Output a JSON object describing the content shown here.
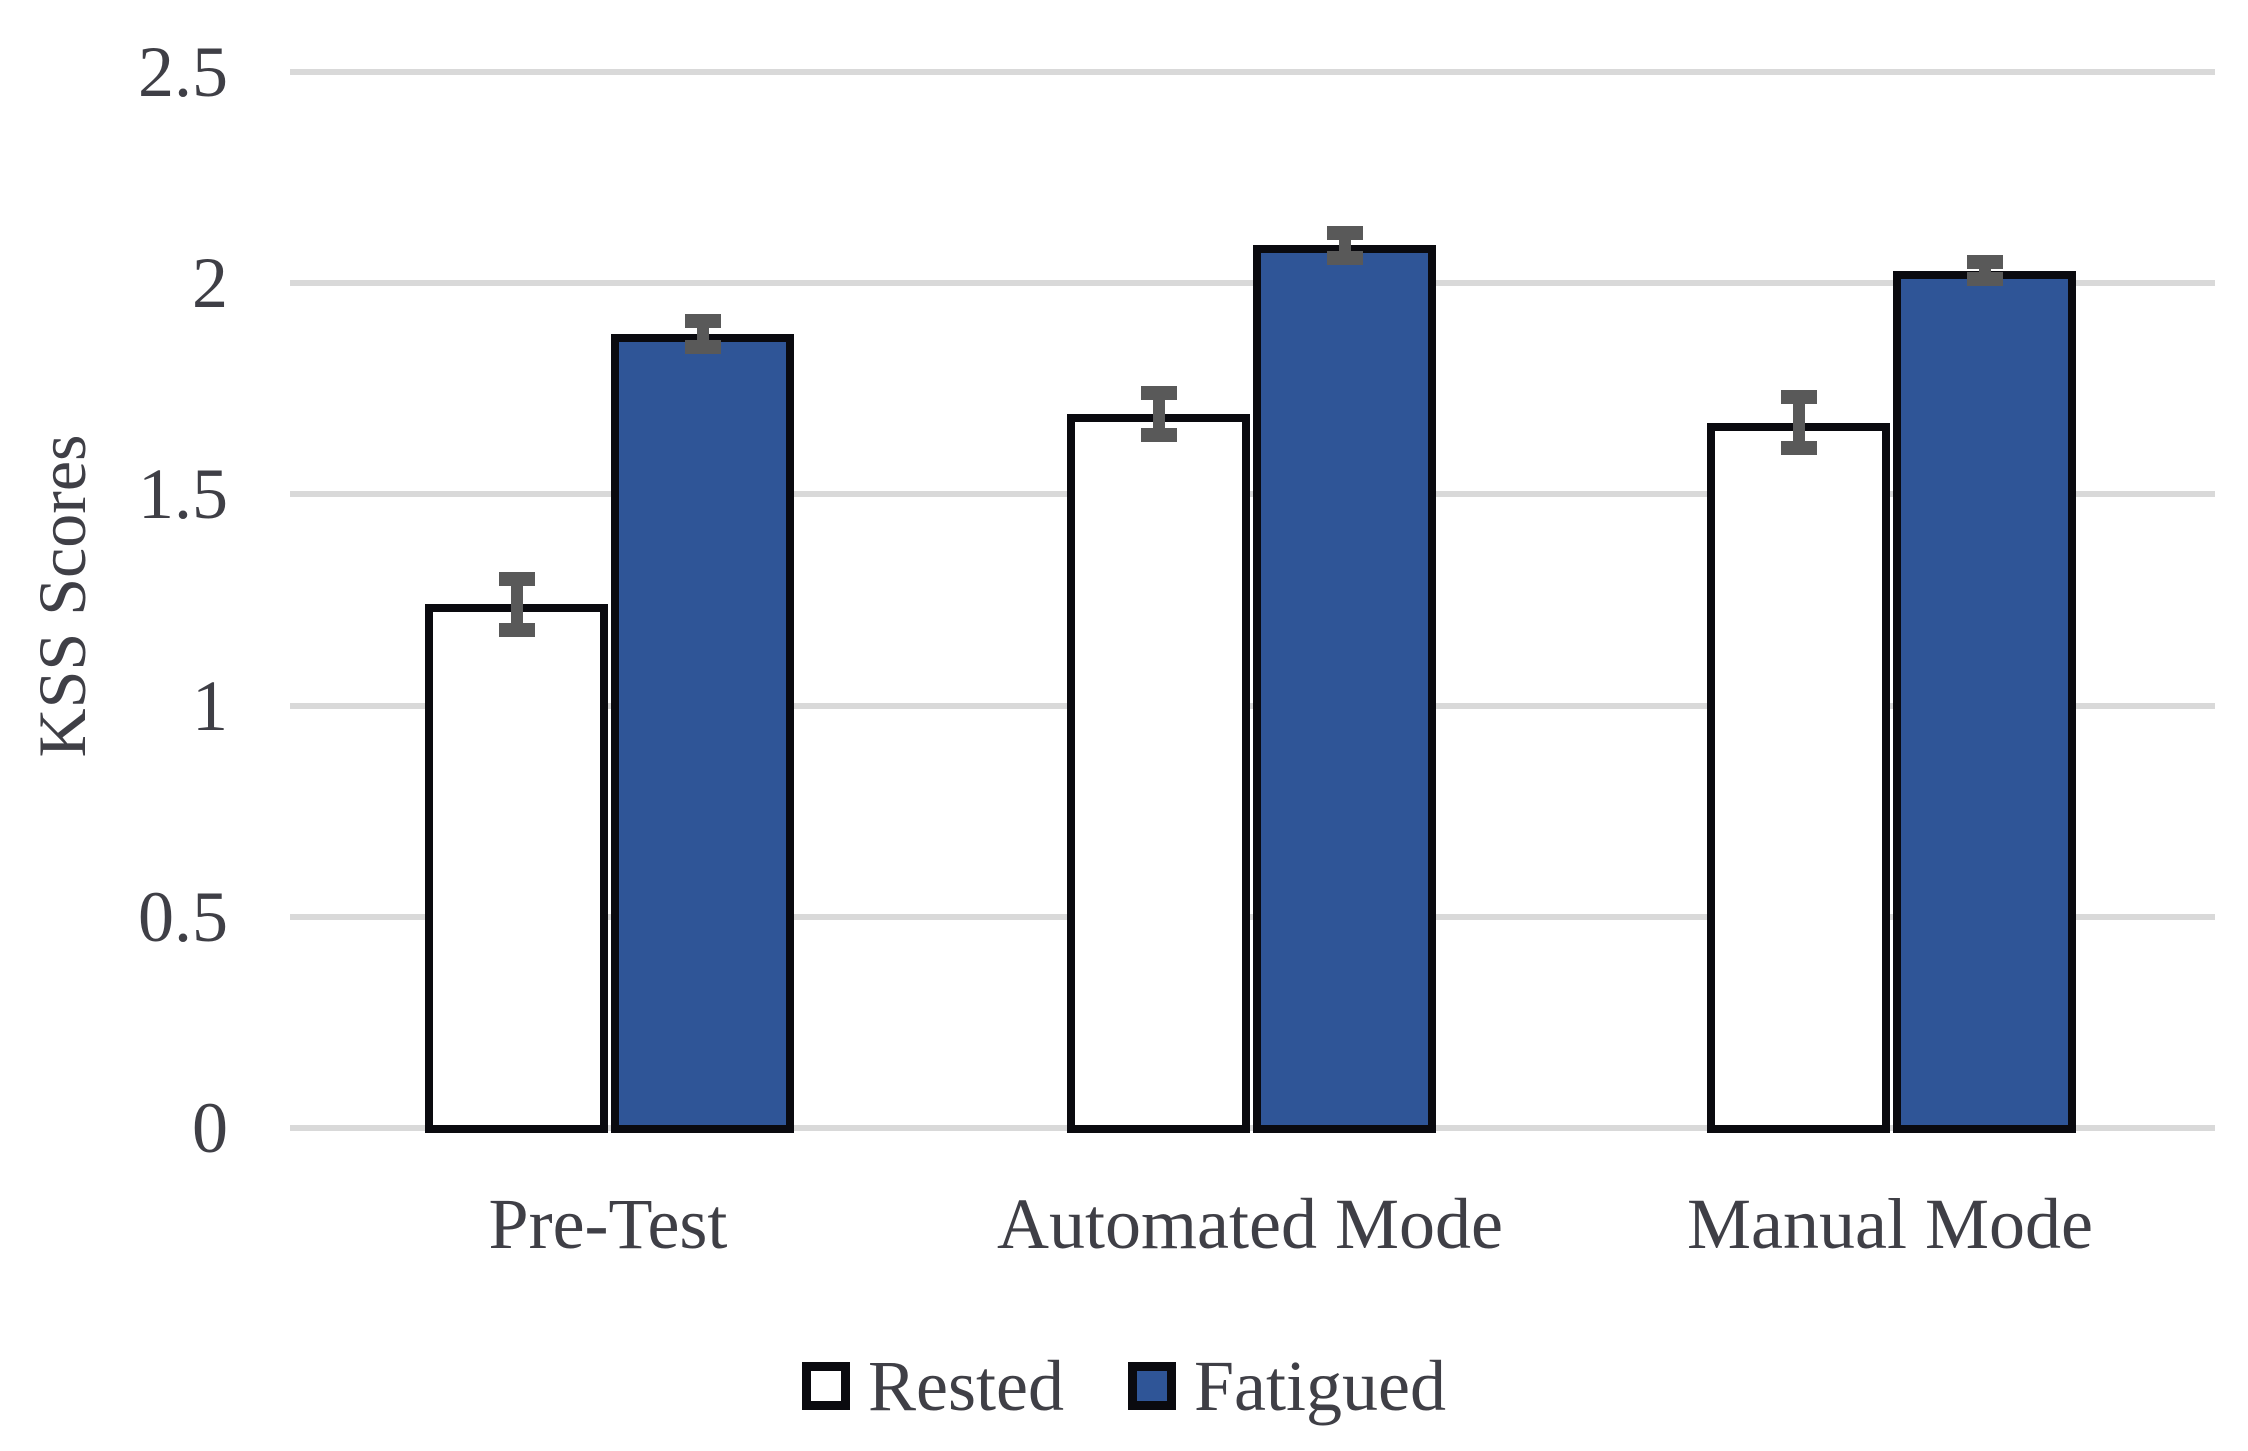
{
  "chart_data": {
    "type": "bar",
    "title": "",
    "ylabel": "KSS Scores",
    "xlabel": "",
    "categories": [
      "Pre-Test",
      "Automated Mode",
      "Manual Mode"
    ],
    "series": [
      {
        "name": "Rested",
        "values": [
          1.24,
          1.69,
          1.67
        ],
        "errors": [
          0.06,
          0.05,
          0.06
        ],
        "fill": "#ffffff"
      },
      {
        "name": "Fatigued",
        "values": [
          1.88,
          2.09,
          2.03
        ],
        "errors": [
          0.03,
          0.03,
          0.02
        ],
        "fill": "#2f5597"
      }
    ],
    "ylim": [
      0,
      2.5
    ],
    "yticks": [
      0,
      0.5,
      1,
      1.5,
      2,
      2.5
    ],
    "ytick_labels": [
      "0",
      "0.5",
      "1",
      "1.5",
      "2",
      "2.5"
    ],
    "grid": true,
    "legend_position": "bottom",
    "error_bars": true,
    "colors": {
      "bar_border": "#0a0a0f",
      "fatigued_blue": "#2f5597",
      "rested_white": "#ffffff",
      "error_bar_gray": "#595959",
      "gridline_gray": "#d9d9d9",
      "text_gray": "#3f3f46"
    }
  }
}
